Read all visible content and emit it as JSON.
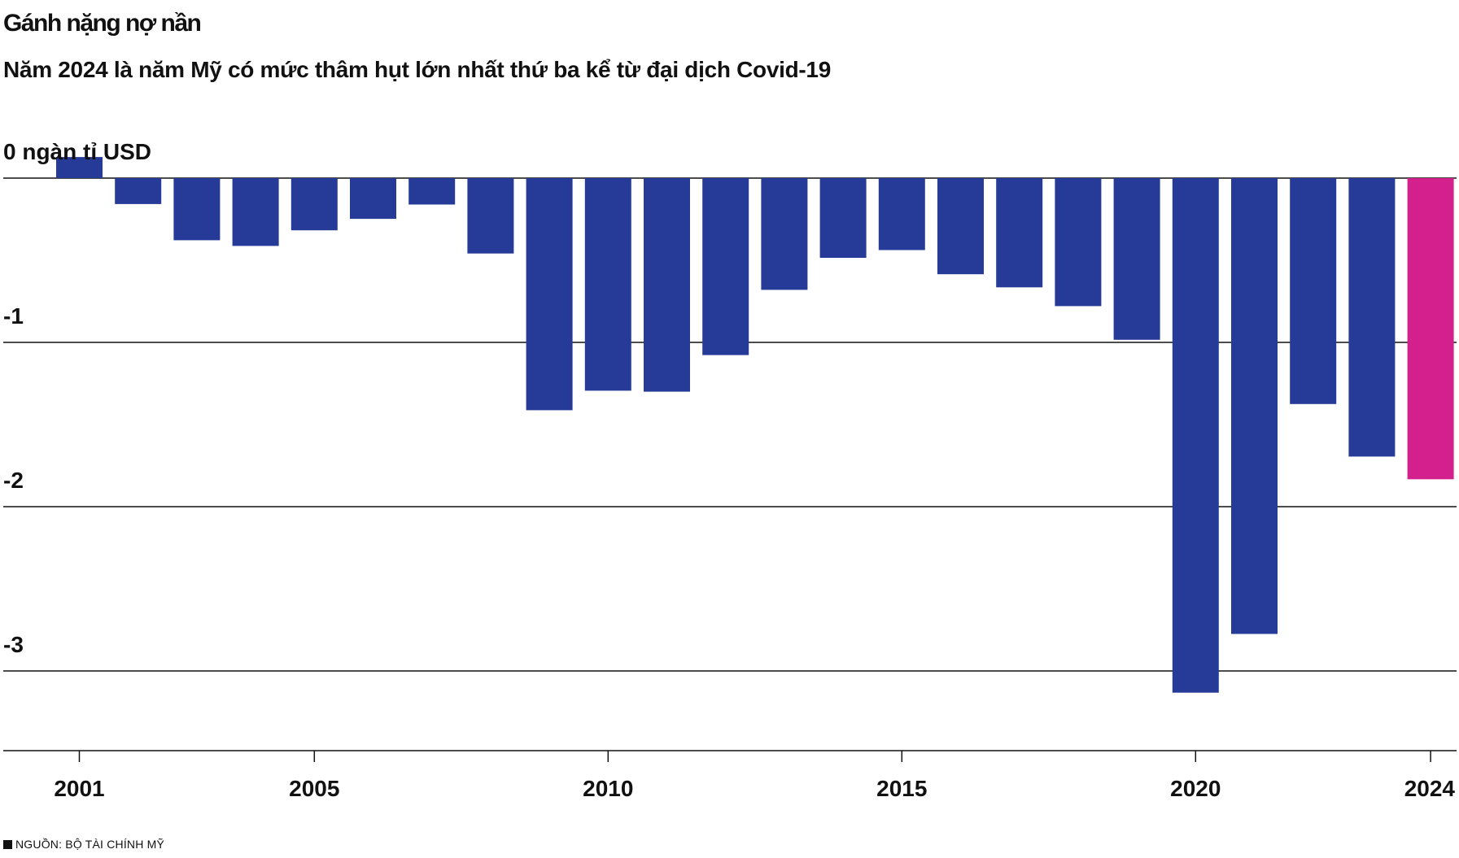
{
  "title": "Gánh nặng nợ nần",
  "subtitle": "Năm 2024 là năm Mỹ có mức thâm hụt lớn nhất thứ ba kể từ đại dịch Covid-19",
  "source": "NGUỒN: BỘ TÀI CHÍNH MỸ",
  "colors": {
    "bar": "#263a97",
    "highlight": "#d4208c",
    "axis": "#111111"
  },
  "chart_data": {
    "type": "bar",
    "title": "Gánh nặng nợ nần",
    "subtitle": "Năm 2024 là năm Mỹ có mức thâm hụt lớn nhất thứ ba kể từ đại dịch Covid-19",
    "ylabel": "ngàn tỉ USD",
    "ylim": [
      -3.5,
      0.15
    ],
    "y_ticks": [
      {
        "value": 0,
        "label": "0 ngàn tỉ USD"
      },
      {
        "value": -1,
        "label": "-1"
      },
      {
        "value": -2,
        "label": "-2"
      },
      {
        "value": -3,
        "label": "-3"
      }
    ],
    "x_ticks": [
      2001,
      2005,
      2010,
      2015,
      2020,
      2024
    ],
    "highlight": 2024,
    "categories": [
      2001,
      2002,
      2003,
      2004,
      2005,
      2006,
      2007,
      2008,
      2009,
      2010,
      2011,
      2012,
      2013,
      2014,
      2015,
      2016,
      2017,
      2018,
      2019,
      2020,
      2021,
      2022,
      2023,
      2024
    ],
    "values": [
      0.128,
      -0.158,
      -0.378,
      -0.413,
      -0.318,
      -0.248,
      -0.161,
      -0.459,
      -1.413,
      -1.294,
      -1.3,
      -1.077,
      -0.68,
      -0.485,
      -0.438,
      -0.585,
      -0.665,
      -0.779,
      -0.984,
      -3.132,
      -2.775,
      -1.375,
      -1.695,
      -1.833
    ]
  }
}
